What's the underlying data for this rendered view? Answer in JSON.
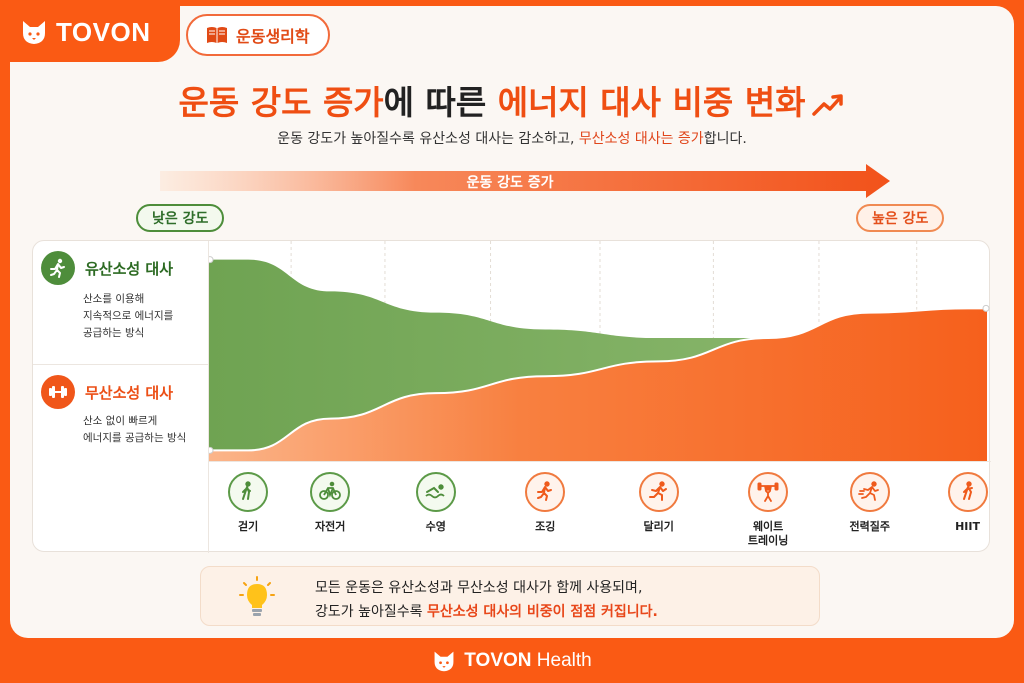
{
  "brand": {
    "name": "TOVON"
  },
  "tag": {
    "label": "운동생리학",
    "icon": "book-icon"
  },
  "title": {
    "part1": "운동 강도 증가",
    "part2": "에 따른 ",
    "part3": "에너지 대사 비중 변화",
    "icon": "trend-up-icon"
  },
  "subtitle": {
    "part1": "운동 강도가 높아질수록 유산소성 대사는 감소하고, ",
    "part2": "무산소성 대사는 증가",
    "part3": "합니다."
  },
  "intensity_axis": {
    "label": "운동 강도 증가",
    "low": "낮은 강도",
    "high": "높은 강도"
  },
  "legend": {
    "aerobic": {
      "title": "유산소성 대사",
      "desc1": "산소를 이용해",
      "desc2": "지속적으로 에너지를",
      "desc3": "공급하는 방식",
      "icon": "running-person-icon",
      "color": "#5c9a48"
    },
    "anaerobic": {
      "title": "무산소성 대사",
      "desc1": "산소 없이 빠르게",
      "desc2": "에너지를 공급하는 방식",
      "icon": "dumbbell-icon",
      "color": "#f66a24"
    }
  },
  "chart_data": {
    "type": "area",
    "categories": [
      "걷기",
      "자전거",
      "수영",
      "조깅",
      "달리기",
      "웨이트 트레이닝",
      "전력질주",
      "HIIT"
    ],
    "series": [
      {
        "name": "유산소성 대사",
        "values": [
          0.95,
          0.8,
          0.7,
          0.62,
          0.58,
          0.58,
          0.58,
          0.58
        ]
      },
      {
        "name": "무산소성 대사",
        "values": [
          0.05,
          0.2,
          0.32,
          0.4,
          0.47,
          0.58,
          0.7,
          0.72
        ]
      }
    ],
    "ylim": [
      0,
      1
    ],
    "grid": true
  },
  "activities": [
    {
      "label": "걷기",
      "icon": "walking-icon",
      "tone": "green"
    },
    {
      "label": "자전거",
      "icon": "bicycle-icon",
      "tone": "green"
    },
    {
      "label": "수영",
      "icon": "swimming-icon",
      "tone": "green"
    },
    {
      "label": "조깅",
      "icon": "jogging-icon",
      "tone": "orange"
    },
    {
      "label": "달리기",
      "icon": "running-icon",
      "tone": "orange"
    },
    {
      "label": "웨이트\n트레이닝",
      "icon": "weightlifting-icon",
      "tone": "orange"
    },
    {
      "label": "전력질주",
      "icon": "sprinting-icon",
      "tone": "orange"
    },
    {
      "label": "HIIT",
      "icon": "hiit-icon",
      "tone": "orange"
    }
  ],
  "note": {
    "line1": "모든 운동은 유산소성과 무산소성 대사가 함께 사용되며,",
    "line2a": "강도가 높아질수록 ",
    "line2b": "무산소성 대사의 비중이 점점 커집니다.",
    "icon": "lightbulb-icon"
  },
  "footer": {
    "brand": "TOVON",
    "suffix": " Health"
  },
  "colors": {
    "accent": "#fa5a14",
    "green": "#5c9a48",
    "orange": "#f66a24"
  }
}
